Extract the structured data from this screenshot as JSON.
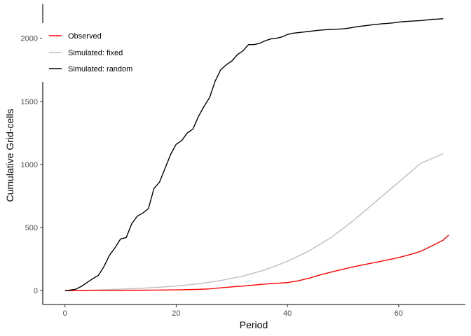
{
  "chart_data": {
    "type": "line",
    "xlabel": "Period",
    "ylabel": "Cumulative Grid-cells",
    "xlim": [
      -4,
      72
    ],
    "ylim": [
      -110,
      2270
    ],
    "xticks": [
      0,
      20,
      40,
      60
    ],
    "yticks": [
      0,
      500,
      1000,
      1500,
      2000
    ],
    "grid": false,
    "legend_position": "top-left",
    "series": [
      {
        "name": "Observed",
        "color": "#ff0000",
        "x": [
          0,
          4,
          8,
          12,
          16,
          20,
          24,
          26,
          28,
          30,
          32,
          34,
          36,
          38,
          40,
          42,
          44,
          46,
          48,
          50,
          52,
          54,
          56,
          58,
          60,
          62,
          64,
          66,
          68,
          69
        ],
        "y": [
          0,
          1,
          2,
          3,
          4,
          6,
          10,
          14,
          22,
          30,
          36,
          44,
          52,
          58,
          64,
          78,
          100,
          126,
          148,
          170,
          190,
          208,
          225,
          243,
          262,
          285,
          312,
          355,
          400,
          440
        ]
      },
      {
        "name": "Simulated: fixed",
        "color": "#bebebe",
        "x": [
          0,
          4,
          8,
          12,
          16,
          20,
          24,
          28,
          32,
          36,
          40,
          44,
          48,
          52,
          56,
          60,
          64,
          68
        ],
        "y": [
          0,
          3,
          8,
          15,
          24,
          36,
          54,
          80,
          115,
          165,
          232,
          318,
          425,
          560,
          710,
          860,
          1010,
          1085
        ]
      },
      {
        "name": "Simulated: random",
        "color": "#000000",
        "x": [
          0,
          1,
          2,
          3,
          4,
          5,
          6,
          7,
          8,
          9,
          10,
          11,
          12,
          13,
          14,
          15,
          16,
          17,
          18,
          19,
          20,
          21,
          22,
          23,
          24,
          25,
          26,
          27,
          28,
          29,
          30,
          31,
          32,
          33,
          34,
          35,
          36,
          37,
          38,
          39,
          40,
          41,
          42,
          43,
          44,
          45,
          46,
          47,
          48,
          49,
          50,
          51,
          52,
          53,
          54,
          55,
          56,
          57,
          58,
          59,
          60,
          61,
          62,
          63,
          64,
          65,
          66,
          67,
          68
        ],
        "y": [
          0,
          5,
          12,
          35,
          65,
          95,
          120,
          190,
          280,
          340,
          410,
          420,
          530,
          590,
          615,
          650,
          810,
          860,
          970,
          1080,
          1160,
          1190,
          1250,
          1280,
          1380,
          1460,
          1530,
          1660,
          1750,
          1790,
          1820,
          1870,
          1900,
          1950,
          1950,
          1960,
          1980,
          1995,
          2000,
          2010,
          2030,
          2040,
          2045,
          2050,
          2055,
          2060,
          2065,
          2068,
          2070,
          2072,
          2075,
          2080,
          2088,
          2095,
          2100,
          2105,
          2110,
          2115,
          2118,
          2122,
          2128,
          2132,
          2135,
          2138,
          2140,
          2145,
          2150,
          2152,
          2155
        ]
      }
    ]
  }
}
